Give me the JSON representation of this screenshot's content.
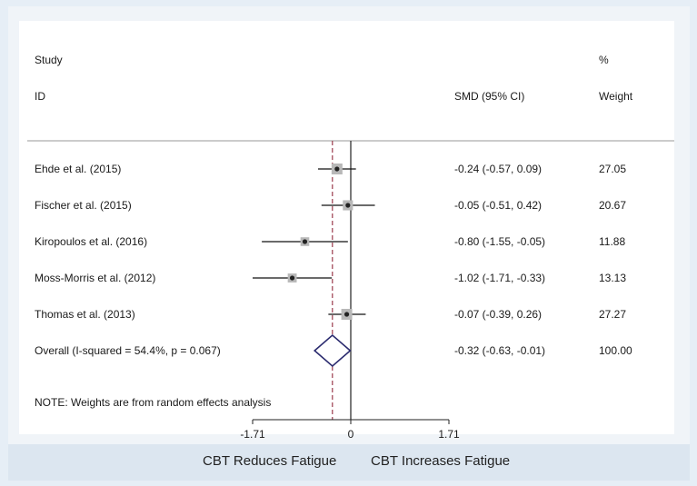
{
  "chart_data": {
    "type": "forest",
    "header": {
      "col1_line1": "Study",
      "col1_line2": "ID",
      "col2": "SMD (95% CI)",
      "col3_line1": "%",
      "col3_line2": "Weight"
    },
    "studies": [
      {
        "label": "Ehde et al.  (2015)",
        "smd": -0.24,
        "lo": -0.57,
        "hi": 0.09,
        "ci_text": "-0.24 (-0.57, 0.09)",
        "weight": "27.05"
      },
      {
        "label": "Fischer et al.  (2015)",
        "smd": -0.05,
        "lo": -0.51,
        "hi": 0.42,
        "ci_text": "-0.05 (-0.51, 0.42)",
        "weight": "20.67"
      },
      {
        "label": "Kiropoulos et al. (2016)",
        "smd": -0.8,
        "lo": -1.55,
        "hi": -0.05,
        "ci_text": "-0.80 (-1.55, -0.05)",
        "weight": "11.88"
      },
      {
        "label": "Moss-Morris et al. (2012)",
        "smd": -1.02,
        "lo": -1.71,
        "hi": -0.33,
        "ci_text": "-1.02 (-1.71, -0.33)",
        "weight": "13.13"
      },
      {
        "label": "Thomas et al.  (2013)",
        "smd": -0.07,
        "lo": -0.39,
        "hi": 0.26,
        "ci_text": "-0.07 (-0.39, 0.26)",
        "weight": "27.27"
      }
    ],
    "overall": {
      "label": "Overall  (I-squared = 54.4%, p = 0.067)",
      "smd": -0.32,
      "lo": -0.63,
      "hi": -0.01,
      "ci_text": "-0.32 (-0.63, -0.01)",
      "weight": "100.00"
    },
    "note": "NOTE: Weights are from random effects analysis",
    "x_ticks": [
      -1.71,
      0,
      1.71
    ],
    "x_tick_labels": [
      "-1.71",
      "0",
      "1.71"
    ],
    "xlim": [
      -1.71,
      1.71
    ],
    "footer_left": "CBT Reduces Fatigue",
    "footer_right": "CBT Increases Fatigue",
    "colors": {
      "diamond": "#2a2a6e",
      "overall_line": "#9b3b4c",
      "marker": "#222222",
      "box": "#b8b8b8"
    }
  }
}
